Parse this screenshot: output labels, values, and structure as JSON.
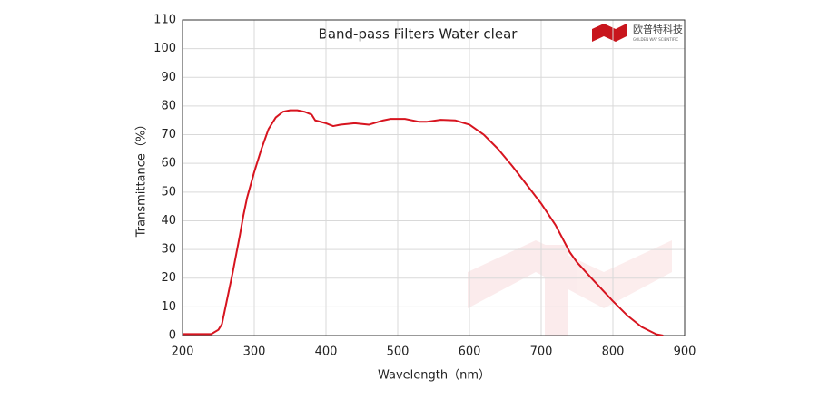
{
  "chart_data": {
    "type": "line",
    "title": "Band-pass  Filters Water clear",
    "x_label": "Wavelength（nm）",
    "y_label": "Transmittance（%）",
    "logo": {
      "name": "欧普特科技",
      "subtitle": "GOLDEN WAY SCIENTIFIC"
    },
    "x": [
      200,
      240,
      250,
      255,
      260,
      270,
      280,
      285,
      290,
      300,
      310,
      320,
      330,
      340,
      350,
      360,
      370,
      380,
      385,
      400,
      410,
      420,
      440,
      460,
      480,
      490,
      510,
      530,
      540,
      560,
      580,
      600,
      620,
      640,
      660,
      680,
      700,
      720,
      740,
      750,
      770,
      800,
      820,
      840,
      860,
      870
    ],
    "series": [
      {
        "name": "Water clear",
        "color": "#d7141f",
        "values": [
          0.5,
          0.5,
          2,
          4,
          10,
          22,
          35,
          42,
          48,
          57,
          65,
          72,
          76,
          78,
          78.5,
          78.5,
          78,
          77,
          75,
          74,
          73,
          73.5,
          74,
          73.5,
          75,
          75.5,
          75.5,
          74.5,
          74.5,
          75.2,
          75,
          73.5,
          70,
          65,
          59,
          52.5,
          46,
          38.5,
          29,
          25.5,
          20,
          12,
          7,
          3,
          0.5,
          0
        ]
      }
    ],
    "xlim": [
      200,
      900
    ],
    "xticks": [
      200,
      300,
      400,
      500,
      600,
      700,
      800,
      900
    ],
    "ylim": [
      0,
      110
    ],
    "yticks": [
      0,
      10,
      20,
      30,
      40,
      50,
      60,
      70,
      80,
      90,
      100,
      110
    ],
    "grid": true
  }
}
